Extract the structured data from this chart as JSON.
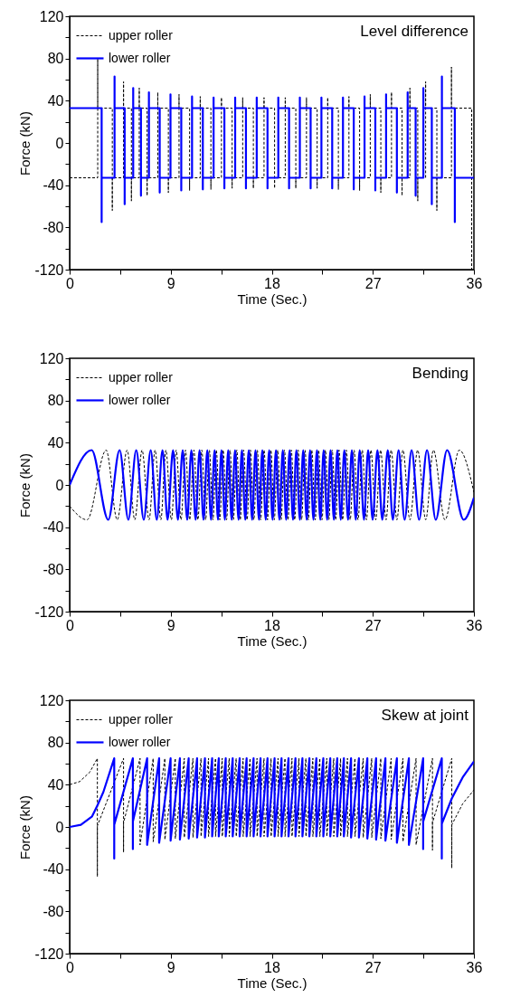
{
  "chart_data": [
    {
      "type": "line",
      "title": "Level difference",
      "xlabel": "Time (Sec.)",
      "ylabel": "Force (kN)",
      "xlim": [
        0,
        36
      ],
      "ylim": [
        -120,
        120
      ],
      "xticks": [
        0,
        {
          "value": 4.5,
          "label": null
        },
        9,
        {
          "value": 13.5,
          "label": null
        },
        18,
        {
          "value": 22.5,
          "label": null
        },
        27,
        {
          "value": 31.5,
          "label": null
        },
        36
      ],
      "yticks": [
        -120,
        {
          "value": -100,
          "label": null
        },
        -80,
        {
          "value": -60,
          "label": null
        },
        -40,
        {
          "value": -20,
          "label": null
        },
        0,
        {
          "value": 20,
          "label": null
        },
        40,
        {
          "value": 60,
          "label": null
        },
        80,
        {
          "value": 100,
          "label": null
        },
        120
      ],
      "legend": "top left",
      "series": [
        {
          "name": "upper roller",
          "color": "#000000",
          "line_style": "dashed",
          "x": [
            0,
            2.5,
            2.5,
            2.5,
            3.8,
            3.8,
            3.8,
            4.8,
            4.8,
            4.8,
            5.5,
            5.5,
            5.5,
            6.2,
            6.2,
            6.2,
            6.9,
            6.9,
            6.9,
            7.85,
            7.85,
            7.85,
            8.79,
            8.79,
            8.79,
            9.74,
            9.74,
            9.74,
            10.68,
            10.68,
            10.68,
            11.63,
            11.63,
            11.63,
            12.58,
            12.58,
            12.58,
            13.52,
            13.52,
            13.52,
            14.47,
            14.47,
            14.47,
            15.41,
            15.41,
            15.41,
            16.36,
            16.36,
            16.36,
            17.31,
            17.31,
            17.31,
            18.25,
            18.25,
            18.25,
            19.2,
            19.2,
            19.2,
            20.14,
            20.14,
            20.14,
            21.09,
            21.09,
            21.09,
            22.04,
            22.04,
            22.04,
            22.98,
            22.98,
            22.98,
            23.93,
            23.93,
            23.93,
            24.87,
            24.87,
            24.87,
            25.82,
            25.82,
            25.82,
            26.77,
            26.77,
            26.77,
            27.71,
            27.71,
            27.71,
            28.66,
            28.66,
            28.66,
            29.6,
            29.6,
            29.6,
            30.3,
            30.3,
            30.3,
            31,
            31,
            31,
            31.7,
            31.7,
            31.7,
            32.7,
            32.7,
            32.7,
            34,
            34,
            34,
            35.8,
            35.8
          ],
          "values": [
            -33,
            -33,
            80,
            33,
            33,
            -64,
            -33,
            -33,
            58,
            33,
            33,
            -55,
            -33,
            -33,
            52,
            33,
            33,
            -50,
            -33,
            -33,
            48,
            33,
            33,
            -47,
            -33,
            -33,
            46,
            33,
            33,
            -45,
            -33,
            -33,
            44,
            33,
            33,
            -44,
            -33,
            -33,
            43,
            33,
            33,
            -43,
            -33,
            -33,
            43,
            33,
            33,
            -43,
            -33,
            -33,
            43,
            33,
            33,
            -43,
            -33,
            -33,
            43,
            33,
            33,
            -43,
            -33,
            -33,
            43,
            33,
            33,
            -43,
            -33,
            -33,
            43,
            33,
            33,
            -44,
            -33,
            -33,
            44,
            33,
            33,
            -45,
            -33,
            -33,
            46,
            33,
            33,
            -47,
            -33,
            -33,
            48,
            33,
            33,
            -50,
            -33,
            -33,
            52,
            33,
            33,
            -55,
            -33,
            -33,
            58,
            33,
            33,
            -64,
            -33,
            -33,
            72,
            33,
            33,
            -120
          ]
        },
        {
          "name": "lower roller",
          "color": "#0000ff",
          "line_style": "solid",
          "x": [
            0,
            2.85,
            2.85,
            2.85,
            4,
            4,
            4,
            4.9,
            4.9,
            4.9,
            5.66,
            5.66,
            5.66,
            6.35,
            6.35,
            6.35,
            7.06,
            7.06,
            7.06,
            8.02,
            8.02,
            8.02,
            8.98,
            8.98,
            8.98,
            9.94,
            9.94,
            9.94,
            10.9,
            10.9,
            10.9,
            11.86,
            11.86,
            11.86,
            12.82,
            12.82,
            12.82,
            13.78,
            13.78,
            13.78,
            14.74,
            14.74,
            14.74,
            15.7,
            15.7,
            15.7,
            16.66,
            16.66,
            16.66,
            17.62,
            17.62,
            17.62,
            18.58,
            18.58,
            18.58,
            19.54,
            19.54,
            19.54,
            20.5,
            20.5,
            20.5,
            21.46,
            21.46,
            21.46,
            22.42,
            22.42,
            22.42,
            23.38,
            23.38,
            23.38,
            24.34,
            24.34,
            24.34,
            25.3,
            25.3,
            25.3,
            26.26,
            26.26,
            26.26,
            27.22,
            27.22,
            27.22,
            28.18,
            28.18,
            28.18,
            29.14,
            29.14,
            29.14,
            30.1,
            30.1,
            30.1,
            30.81,
            30.81,
            30.81,
            31.5,
            31.5,
            31.5,
            32.25,
            32.25,
            32.25,
            33.15,
            33.15,
            33.15,
            34.3,
            34.3,
            34.3,
            36
          ],
          "values": [
            33,
            33,
            -75,
            -33,
            -33,
            63,
            33,
            33,
            -58,
            -33,
            -33,
            52,
            33,
            33,
            -50,
            -33,
            -33,
            48,
            33,
            33,
            -47,
            -33,
            -33,
            46,
            33,
            33,
            -45,
            -33,
            -33,
            44,
            33,
            33,
            -44,
            -33,
            -33,
            43,
            33,
            33,
            -43,
            -33,
            -33,
            43,
            33,
            33,
            -43,
            -33,
            -33,
            43,
            33,
            33,
            -43,
            -33,
            -33,
            43,
            33,
            33,
            -43,
            -33,
            -33,
            43,
            33,
            33,
            -43,
            -33,
            -33,
            43,
            33,
            33,
            -43,
            -33,
            -33,
            43,
            33,
            33,
            -44,
            -33,
            -33,
            44,
            33,
            33,
            -45,
            -33,
            -33,
            46,
            33,
            33,
            -47,
            -33,
            -33,
            48,
            33,
            33,
            -50,
            -33,
            -33,
            52,
            33,
            33,
            -58,
            -33,
            -33,
            63,
            33,
            33,
            -75,
            -33,
            -33
          ]
        }
      ]
    },
    {
      "type": "line",
      "title": "Bending",
      "xlabel": "Time (Sec.)",
      "ylabel": "Force (kN)",
      "xlim": [
        0,
        36
      ],
      "ylim": [
        -120,
        120
      ],
      "xticks": [
        0,
        {
          "value": 4.5,
          "label": null
        },
        9,
        {
          "value": 13.5,
          "label": null
        },
        18,
        {
          "value": 22.5,
          "label": null
        },
        27,
        {
          "value": 31.5,
          "label": null
        },
        36
      ],
      "yticks": [
        -120,
        {
          "value": -100,
          "label": null
        },
        -80,
        {
          "value": -60,
          "label": null
        },
        -40,
        {
          "value": -20,
          "label": null
        },
        0,
        {
          "value": 20,
          "label": null
        },
        40,
        {
          "value": 60,
          "label": null
        },
        80,
        {
          "value": 100,
          "label": null
        },
        120
      ],
      "legend": "top left",
      "series": [
        {
          "name": "upper roller",
          "color": "#000000",
          "line_style": "dashed",
          "x": [
            0,
            1.55,
            3.25,
            4.24,
            5.12,
            5.8,
            6.45,
            7.07,
            7.61,
            8.12,
            8.57,
            9.06,
            9.49,
            9.92,
            10.32,
            10.69,
            11.07,
            11.42,
            11.77,
            12.11,
            12.44,
            12.76,
            13.06,
            13.37,
            13.67,
            13.97,
            14.28,
            14.58,
            14.89,
            15.19,
            15.49,
            15.8,
            16.1,
            16.4,
            16.71,
            17.01,
            17.31,
            17.62,
            17.92,
            18.22,
            18.53,
            18.83,
            19.13,
            19.44,
            19.74,
            20.04,
            20.35,
            20.65,
            20.96,
            21.26,
            21.56,
            21.87,
            22.17,
            22.47,
            22.78,
            23.08,
            23.38,
            23.69,
            23.99,
            24.31,
            24.64,
            24.98,
            25.33,
            25.68,
            26.06,
            26.43,
            26.83,
            27.26,
            27.69,
            28.18,
            28.63,
            29.14,
            29.68,
            30.3,
            30.99,
            31.71,
            32.39,
            33.42,
            34.7,
            36
          ],
          "values": [
            -20,
            -33,
            33,
            -33,
            33,
            -33,
            33,
            -33,
            33,
            -33,
            33,
            -33,
            33,
            -33,
            33,
            -33,
            33,
            -33,
            33,
            -33,
            33,
            -33,
            33,
            -33,
            33,
            -33,
            33,
            -33,
            33,
            -33,
            33,
            -33,
            33,
            -33,
            33,
            -33,
            33,
            -33,
            33,
            -33,
            33,
            -33,
            33,
            -33,
            33,
            -33,
            33,
            -33,
            33,
            -33,
            33,
            -33,
            33,
            -33,
            33,
            -33,
            33,
            -33,
            33,
            -33,
            33,
            -33,
            33,
            -33,
            33,
            -33,
            33,
            -33,
            33,
            -33,
            33,
            -33,
            33,
            -33,
            33,
            -33,
            33,
            -33,
            33,
            -7
          ]
        },
        {
          "name": "lower roller",
          "color": "#0000ff",
          "line_style": "solid",
          "x": [
            0,
            1.96,
            3.44,
            4.45,
            5.23,
            5.93,
            6.6,
            7.22,
            7.76,
            8.27,
            8.72,
            9.21,
            9.64,
            10.07,
            10.47,
            10.84,
            11.22,
            11.57,
            11.92,
            12.26,
            12.59,
            12.91,
            13.21,
            13.52,
            13.82,
            14.12,
            14.43,
            14.73,
            15.04,
            15.34,
            15.64,
            15.95,
            16.25,
            16.55,
            16.86,
            17.16,
            17.46,
            17.77,
            18.07,
            18.37,
            18.68,
            18.98,
            19.28,
            19.59,
            19.89,
            20.19,
            20.5,
            20.8,
            21.11,
            21.41,
            21.71,
            22.02,
            22.32,
            22.62,
            22.93,
            23.23,
            23.53,
            23.84,
            24.14,
            24.46,
            24.79,
            25.13,
            25.48,
            25.83,
            26.21,
            26.58,
            26.98,
            27.41,
            27.84,
            28.33,
            28.78,
            29.29,
            29.83,
            30.45,
            31.12,
            31.82,
            32.6,
            33.61,
            35.09,
            36
          ],
          "values": [
            0,
            33,
            -33,
            33,
            -33,
            33,
            -33,
            33,
            -33,
            33,
            -33,
            33,
            -33,
            33,
            -33,
            33,
            -33,
            33,
            -33,
            33,
            -33,
            33,
            -33,
            33,
            -33,
            33,
            -33,
            33,
            -33,
            33,
            -33,
            33,
            -33,
            33,
            -33,
            33,
            -33,
            33,
            -33,
            33,
            -33,
            33,
            -33,
            33,
            -33,
            33,
            -33,
            33,
            -33,
            33,
            -33,
            33,
            -33,
            33,
            -33,
            33,
            -33,
            33,
            -33,
            33,
            -33,
            33,
            -33,
            33,
            -33,
            33,
            -33,
            33,
            -33,
            33,
            -33,
            33,
            -33,
            33,
            -33,
            33,
            -33,
            33,
            -33,
            -12
          ]
        }
      ]
    },
    {
      "type": "line",
      "title": "Skew at joint",
      "xlabel": "Time (Sec.)",
      "ylabel": "Force (kN)",
      "xlim": [
        0,
        36
      ],
      "ylim": [
        -120,
        120
      ],
      "xticks": [
        0,
        {
          "value": 4.5,
          "label": null
        },
        9,
        {
          "value": 13.5,
          "label": null
        },
        18,
        {
          "value": 22.5,
          "label": null
        },
        27,
        {
          "value": 31.5,
          "label": null
        },
        36
      ],
      "yticks": [
        -120,
        {
          "value": -100,
          "label": null
        },
        -80,
        {
          "value": -60,
          "label": null
        },
        -40,
        {
          "value": -20,
          "label": null
        },
        0,
        {
          "value": 20,
          "label": null
        },
        40,
        {
          "value": 60,
          "label": null
        },
        80,
        {
          "value": 100,
          "label": null
        },
        120
      ],
      "legend": "top left",
      "series": [
        {
          "name": "upper roller",
          "color": "#000000",
          "line_style": "dashed",
          "x": [
            0,
            0.9,
            1.8,
            2.47,
            2.47,
            2.47,
            4.8,
            4.8,
            4.8,
            6.27,
            6.27,
            7.44,
            7.44,
            8.48,
            8.48,
            9.41,
            9.41,
            10.21,
            10.21,
            10.98,
            10.98,
            11.7,
            11.7,
            12.37,
            12.37,
            12.99,
            12.99,
            13.59,
            13.59,
            14.21,
            14.21,
            14.83,
            14.83,
            15.45,
            15.45,
            16.07,
            16.07,
            16.69,
            16.69,
            17.31,
            17.31,
            17.94,
            17.94,
            18.56,
            18.56,
            19.18,
            19.18,
            19.8,
            19.8,
            20.42,
            20.42,
            21.04,
            21.04,
            21.66,
            21.66,
            22.28,
            22.28,
            22.9,
            22.9,
            23.52,
            23.52,
            24.13,
            24.13,
            24.74,
            24.74,
            25.41,
            25.41,
            26.14,
            26.14,
            26.9,
            26.9,
            27.71,
            27.71,
            28.63,
            28.63,
            29.68,
            29.68,
            30.85,
            30.85,
            32.31,
            32.31,
            32.31,
            34.03,
            34.03,
            34.03,
            35,
            36
          ],
          "values": [
            40,
            43,
            52,
            65,
            -47,
            1,
            65,
            -24,
            4,
            65,
            -17,
            65,
            -14,
            65,
            -12,
            65,
            -11,
            65,
            -10,
            65,
            -10,
            65,
            -9,
            65,
            -9,
            65,
            -9,
            65,
            -9,
            65,
            -9,
            65,
            -9,
            65,
            -9,
            65,
            -9,
            65,
            -9,
            65,
            -9,
            65,
            -9,
            65,
            -9,
            65,
            -9,
            65,
            -9,
            65,
            -9,
            65,
            -9,
            65,
            -9,
            65,
            -9,
            65,
            -9,
            65,
            -9,
            65,
            -9,
            65,
            -9,
            65,
            -9,
            65,
            -10,
            65,
            -10,
            65,
            -11,
            65,
            -12,
            65,
            -14,
            65,
            -17,
            65,
            -22,
            4,
            65,
            -39,
            2,
            22,
            35
          ]
        },
        {
          "name": "lower roller",
          "color": "#0000ff",
          "line_style": "solid",
          "x": [
            0,
            1,
            2,
            2.5,
            3,
            3.97,
            3.97,
            3.97,
            5.63,
            5.63,
            5.63,
            6.9,
            6.9,
            7.97,
            7.97,
            8.99,
            8.99,
            9.82,
            9.82,
            10.6,
            10.6,
            11.35,
            11.35,
            12.05,
            12.05,
            12.69,
            12.69,
            13.28,
            13.28,
            13.9,
            13.9,
            14.52,
            14.52,
            15.14,
            15.14,
            15.76,
            15.76,
            16.38,
            16.38,
            17,
            17,
            17.62,
            17.62,
            18.25,
            18.25,
            18.87,
            18.87,
            19.49,
            19.49,
            20.11,
            20.11,
            20.73,
            20.73,
            21.35,
            21.35,
            21.97,
            21.97,
            22.59,
            22.59,
            23.21,
            23.21,
            23.83,
            23.83,
            24.42,
            24.42,
            25.06,
            25.06,
            25.76,
            25.76,
            26.51,
            26.51,
            27.29,
            27.29,
            28.12,
            28.12,
            29.14,
            29.14,
            30.21,
            30.21,
            31.48,
            31.48,
            31.48,
            33.14,
            33.14,
            33.14,
            34.03,
            35,
            36
          ],
          "values": [
            0,
            2,
            10,
            21,
            33,
            65,
            -30,
            2,
            65,
            -21,
            5,
            65,
            -17,
            65,
            -15,
            65,
            -13,
            65,
            -12,
            65,
            -11,
            65,
            -10,
            65,
            -10,
            65,
            -9,
            65,
            -9,
            65,
            -9,
            65,
            -9,
            65,
            -9,
            65,
            -9,
            65,
            -9,
            65,
            -9,
            65,
            -9,
            65,
            -9,
            65,
            -9,
            65,
            -9,
            65,
            -9,
            65,
            -9,
            65,
            -9,
            65,
            -9,
            65,
            -9,
            65,
            -9,
            65,
            -9,
            65,
            -9,
            65,
            -10,
            65,
            -10,
            65,
            -11,
            65,
            -12,
            65,
            -13,
            65,
            -15,
            65,
            -17,
            65,
            -21,
            5,
            65,
            -30,
            3,
            27,
            47,
            62
          ]
        }
      ]
    }
  ]
}
